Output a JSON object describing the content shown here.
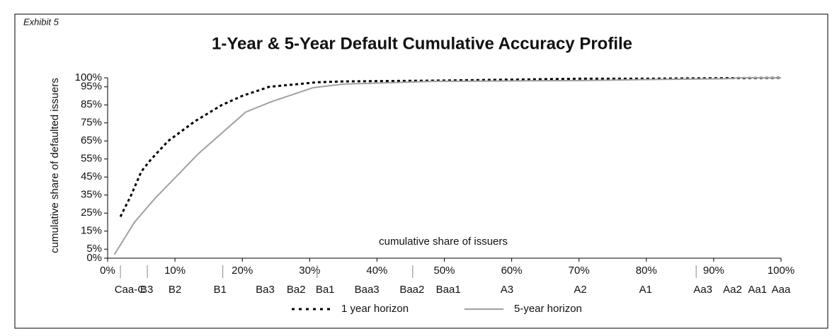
{
  "chart_data": {
    "type": "line",
    "exhibit": "Exhibit 5",
    "title": "1-Year & 5-Year Default Cumulative Accuracy Profile",
    "x_label": "cumulative share of issuers",
    "y_label": "cumulative share of defaulted issuers",
    "xlim": [
      0,
      100
    ],
    "ylim": [
      0,
      100
    ],
    "xticks": [
      {
        "value": 0,
        "label": "0%"
      },
      {
        "value": 10,
        "label": "10%"
      },
      {
        "value": 20,
        "label": "20%"
      },
      {
        "value": 30,
        "label": "30%"
      },
      {
        "value": 40,
        "label": "40%"
      },
      {
        "value": 50,
        "label": "50%"
      },
      {
        "value": 60,
        "label": "60%"
      },
      {
        "value": 70,
        "label": "70%"
      },
      {
        "value": 80,
        "label": "80%"
      },
      {
        "value": 90,
        "label": "90%"
      },
      {
        "value": 100,
        "label": "100%"
      }
    ],
    "yticks": [
      {
        "value": 0,
        "label": "0%"
      },
      {
        "value": 5,
        "label": "5%"
      },
      {
        "value": 15,
        "label": "15%"
      },
      {
        "value": 25,
        "label": "25%"
      },
      {
        "value": 35,
        "label": "35%"
      },
      {
        "value": 45,
        "label": "45%"
      },
      {
        "value": 55,
        "label": "55%"
      },
      {
        "value": 65,
        "label": "65%"
      },
      {
        "value": 75,
        "label": "75%"
      },
      {
        "value": 85,
        "label": "85%"
      },
      {
        "value": 95,
        "label": "95%"
      },
      {
        "value": 100,
        "label": "100%"
      }
    ],
    "ratings": [
      {
        "label": "Caa-C",
        "x": 3.3
      },
      {
        "label": "B3",
        "x": 5.8
      },
      {
        "label": "B2",
        "x": 10
      },
      {
        "label": "B1",
        "x": 16.7
      },
      {
        "label": "Ba3",
        "x": 23.4
      },
      {
        "label": "Ba2",
        "x": 28
      },
      {
        "label": "Ba1",
        "x": 32.3
      },
      {
        "label": "Baa3",
        "x": 38.5
      },
      {
        "label": "Baa2",
        "x": 45.2
      },
      {
        "label": "Baa1",
        "x": 50.6
      },
      {
        "label": "A3",
        "x": 59.3
      },
      {
        "label": "A2",
        "x": 70.2
      },
      {
        "label": "A1",
        "x": 79.9
      },
      {
        "label": "Aa3",
        "x": 88.4
      },
      {
        "label": "Aa2",
        "x": 92.8
      },
      {
        "label": "Aa1",
        "x": 96.5
      },
      {
        "label": "Aaa",
        "x": 100
      }
    ],
    "rating_separators": [
      1.9,
      5.9,
      17.1,
      31.1,
      45.3,
      87.4
    ],
    "series": [
      {
        "name": "1 year horizon",
        "color": "#000000",
        "dash": true,
        "x": [
          1.9,
          3.5,
          5,
          6.5,
          9,
          13,
          17,
          20,
          24,
          31,
          35,
          50,
          70,
          80,
          100
        ],
        "values": [
          23,
          35,
          48,
          55,
          65,
          76,
          85,
          90,
          95,
          97.5,
          98,
          98.5,
          99.5,
          99.5,
          100
        ]
      },
      {
        "name": "5-year horizon",
        "color": "#a0a0a0",
        "dash": false,
        "x": [
          1,
          4,
          7,
          13.5,
          20.5,
          24.5,
          30.5,
          35,
          48,
          70,
          80,
          92,
          94,
          100
        ],
        "values": [
          2,
          20,
          33,
          58,
          81,
          87,
          94.5,
          96.5,
          98,
          98.5,
          99,
          99.5,
          100,
          100
        ]
      }
    ]
  }
}
